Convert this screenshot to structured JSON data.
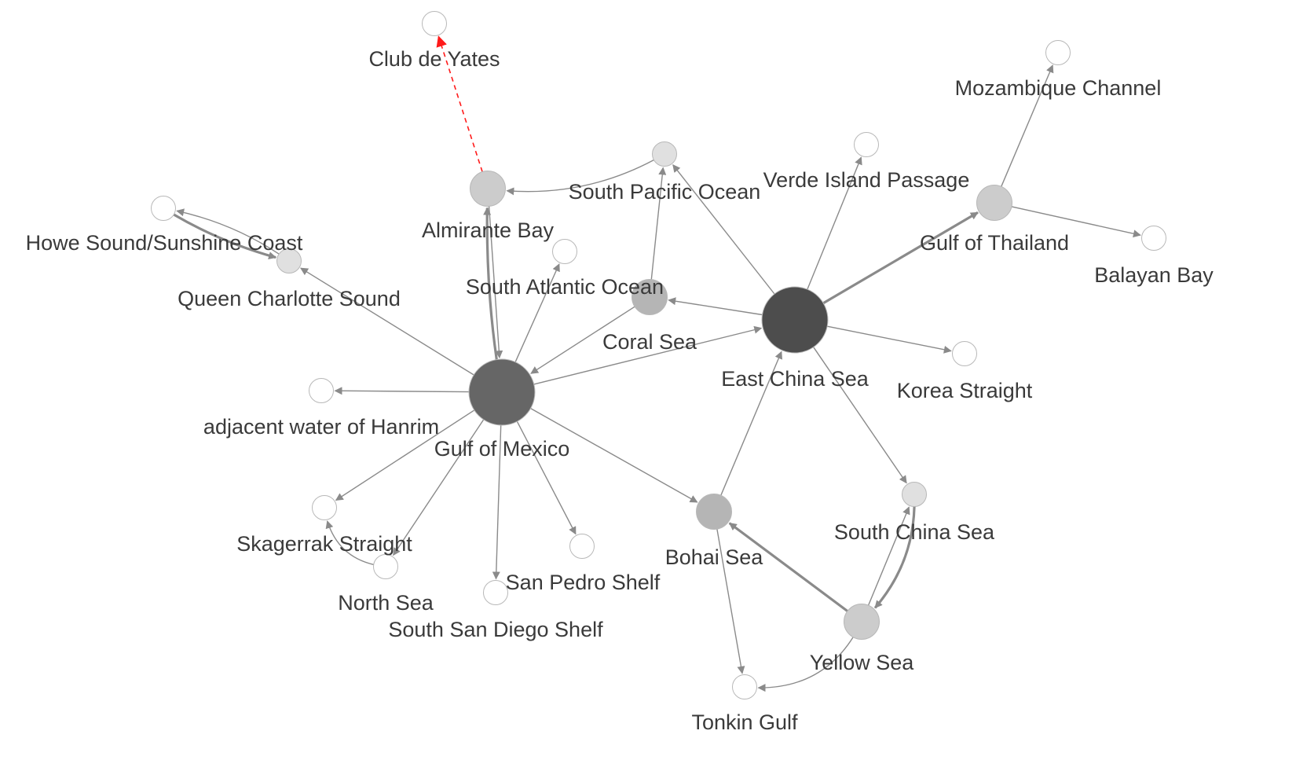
{
  "nodes": [
    {
      "id": "club",
      "label": "Club de Yates",
      "shade": "white",
      "size": "small"
    },
    {
      "id": "mozambique",
      "label": "Mozambique Channel",
      "shade": "white",
      "size": "small"
    },
    {
      "id": "verde",
      "label": "Verde Island Passage",
      "shade": "white",
      "size": "small"
    },
    {
      "id": "southpacific",
      "label": "South Pacific Ocean",
      "shade": "light",
      "size": "small"
    },
    {
      "id": "almirante",
      "label": "Almirante Bay",
      "shade": "mid",
      "size": "medium"
    },
    {
      "id": "gulfthailand",
      "label": "Gulf of Thailand",
      "shade": "mid",
      "size": "medium"
    },
    {
      "id": "balayan",
      "label": "Balayan Bay",
      "shade": "white",
      "size": "small"
    },
    {
      "id": "howe",
      "label": "Howe Sound/Sunshine Coast",
      "shade": "white",
      "size": "small"
    },
    {
      "id": "queencharlotte",
      "label": "Queen Charlotte Sound",
      "shade": "light",
      "size": "small"
    },
    {
      "id": "southatlantic",
      "label": "South Atlantic Ocean",
      "shade": "white",
      "size": "small"
    },
    {
      "id": "coral",
      "label": "Coral Sea",
      "shade": "mid-dark",
      "size": "medium"
    },
    {
      "id": "eastchina",
      "label": "East China Sea",
      "shade": "dark",
      "size": "large"
    },
    {
      "id": "korea",
      "label": "Korea Straight",
      "shade": "white",
      "size": "small"
    },
    {
      "id": "hanrim",
      "label": "adjacent water of Hanrim",
      "shade": "white",
      "size": "small"
    },
    {
      "id": "mexico",
      "label": "Gulf of Mexico",
      "shade": "darker",
      "size": "large"
    },
    {
      "id": "skagerrak",
      "label": "Skagerrak Straight",
      "shade": "white",
      "size": "small"
    },
    {
      "id": "northsea",
      "label": "North Sea",
      "shade": "white",
      "size": "small"
    },
    {
      "id": "sandiego",
      "label": "South San Diego Shelf",
      "shade": "white",
      "size": "small"
    },
    {
      "id": "sanpedro",
      "label": "San Pedro Shelf",
      "shade": "white",
      "size": "small"
    },
    {
      "id": "bohai",
      "label": "Bohai Sea",
      "shade": "mid-dark",
      "size": "medium"
    },
    {
      "id": "southchina",
      "label": "South China Sea",
      "shade": "light",
      "size": "small"
    },
    {
      "id": "yellow",
      "label": "Yellow Sea",
      "shade": "mid",
      "size": "medium"
    },
    {
      "id": "tonkin",
      "label": "Tonkin Gulf",
      "shade": "white",
      "size": "small"
    }
  ],
  "edges": [
    {
      "from": "almirante",
      "to": "club",
      "style": "highlight"
    },
    {
      "from": "mexico",
      "to": "almirante",
      "style": "thick"
    },
    {
      "from": "almirante",
      "to": "mexico",
      "style": "normal"
    },
    {
      "from": "southpacific",
      "to": "almirante",
      "style": "normal"
    },
    {
      "from": "coral",
      "to": "southpacific",
      "style": "normal"
    },
    {
      "from": "eastchina",
      "to": "southpacific",
      "style": "normal"
    },
    {
      "from": "eastchina",
      "to": "verde",
      "style": "normal"
    },
    {
      "from": "eastchina",
      "to": "gulfthailand",
      "style": "thick"
    },
    {
      "from": "gulfthailand",
      "to": "mozambique",
      "style": "normal"
    },
    {
      "from": "gulfthailand",
      "to": "balayan",
      "style": "normal"
    },
    {
      "from": "eastchina",
      "to": "coral",
      "style": "normal"
    },
    {
      "from": "eastchina",
      "to": "korea",
      "style": "normal"
    },
    {
      "from": "eastchina",
      "to": "southchina",
      "style": "normal"
    },
    {
      "from": "coral",
      "to": "mexico",
      "style": "normal"
    },
    {
      "from": "mexico",
      "to": "eastchina",
      "style": "normal"
    },
    {
      "from": "mexico",
      "to": "southatlantic",
      "style": "normal"
    },
    {
      "from": "mexico",
      "to": "queencharlotte",
      "style": "normal"
    },
    {
      "from": "queencharlotte",
      "to": "howe",
      "style": "normal"
    },
    {
      "from": "howe",
      "to": "queencharlotte",
      "style": "thick"
    },
    {
      "from": "mexico",
      "to": "hanrim",
      "style": "normal"
    },
    {
      "from": "mexico",
      "to": "skagerrak",
      "style": "normal"
    },
    {
      "from": "mexico",
      "to": "northsea",
      "style": "normal"
    },
    {
      "from": "northsea",
      "to": "skagerrak",
      "style": "normal"
    },
    {
      "from": "mexico",
      "to": "sandiego",
      "style": "normal"
    },
    {
      "from": "mexico",
      "to": "sanpedro",
      "style": "normal"
    },
    {
      "from": "mexico",
      "to": "bohai",
      "style": "normal"
    },
    {
      "from": "bohai",
      "to": "eastchina",
      "style": "normal"
    },
    {
      "from": "bohai",
      "to": "tonkin",
      "style": "normal"
    },
    {
      "from": "yellow",
      "to": "bohai",
      "style": "thick"
    },
    {
      "from": "yellow",
      "to": "tonkin",
      "style": "normal"
    },
    {
      "from": "yellow",
      "to": "southchina",
      "style": "normal"
    },
    {
      "from": "southchina",
      "to": "yellow",
      "style": "thick"
    }
  ],
  "colors": {
    "white": "#ffffff",
    "light": "#e0e0e0",
    "mid": "#cccccc",
    "mid-dark": "#b5b5b5",
    "darker": "#666666",
    "dark": "#4d4d4d",
    "edge": "#8a8a8a",
    "highlight": "#ff1a1a"
  }
}
